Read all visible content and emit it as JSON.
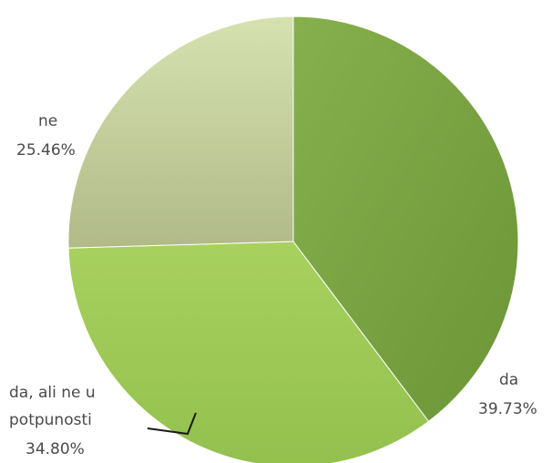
{
  "chart_data": {
    "type": "pie",
    "slices": [
      {
        "label": "da",
        "value": 39.73,
        "value_label": "39.73%",
        "color": "#7aa543"
      },
      {
        "label": "da, ali ne u potpunosti",
        "value": 34.8,
        "value_label": "34.80%",
        "color": "#9fcb59"
      },
      {
        "label": "ne",
        "value": 25.46,
        "value_label": "25.46%",
        "color": "#c2cca0"
      }
    ],
    "start_angle_deg": 0,
    "direction": "clockwise",
    "legend": "none"
  }
}
